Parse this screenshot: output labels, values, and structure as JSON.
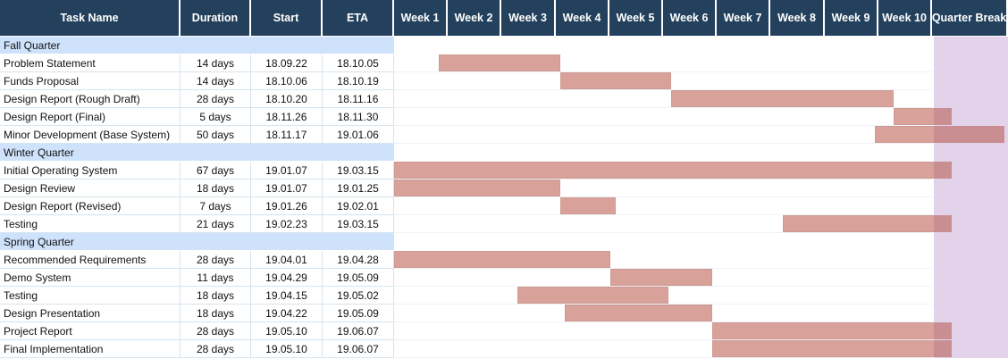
{
  "columns": {
    "task": "Task Name",
    "duration": "Duration",
    "start": "Start",
    "eta": "ETA",
    "weeks": [
      "Week 1",
      "Week 2",
      "Week 3",
      "Week 4",
      "Week 5",
      "Week 6",
      "Week 7",
      "Week 8",
      "Week 9",
      "Week 10"
    ],
    "break": "Quarter Break"
  },
  "chart_data": {
    "type": "table",
    "time_axis": {
      "unit": "week",
      "min": 0,
      "max": 11
    },
    "rows": [
      {
        "kind": "phase",
        "label": "Fall Quarter"
      },
      {
        "kind": "task",
        "name": "Problem Statement",
        "duration": "14 days",
        "start": "18.09.22",
        "eta": "18.10.05",
        "bar": [
          0.8,
          3.0
        ]
      },
      {
        "kind": "task",
        "name": "Funds Proposal",
        "duration": "14 days",
        "start": "18.10.06",
        "eta": "18.10.19",
        "bar": [
          3.0,
          5.0
        ]
      },
      {
        "kind": "task",
        "name": "Design Report (Rough Draft)",
        "duration": "28 days",
        "start": "18.10.20",
        "eta": "18.11.16",
        "bar": [
          5.0,
          9.0
        ]
      },
      {
        "kind": "task",
        "name": "Design Report (Final)",
        "duration": "5 days",
        "start": "18.11.26",
        "eta": "18.11.30",
        "bar": [
          9.0,
          10.05
        ]
      },
      {
        "kind": "task",
        "name": "Minor Development (Base System)",
        "duration": "50 days",
        "start": "18.11.17",
        "eta": "19.01.06",
        "bar": [
          8.67,
          11.0
        ]
      },
      {
        "kind": "phase",
        "label": "Winter Quarter"
      },
      {
        "kind": "task",
        "name": "Initial Operating System",
        "duration": "67 days",
        "start": "19.01.07",
        "eta": "19.03.15",
        "bar": [
          0.0,
          10.05
        ]
      },
      {
        "kind": "task",
        "name": "Design Review",
        "duration": "18 days",
        "start": "19.01.07",
        "eta": "19.01.25",
        "bar": [
          0.0,
          3.0
        ]
      },
      {
        "kind": "task",
        "name": "Design Report (Revised)",
        "duration": "7 days",
        "start": "19.01.26",
        "eta": "19.02.01",
        "bar": [
          3.0,
          4.0
        ]
      },
      {
        "kind": "task",
        "name": "Testing",
        "duration": "21 days",
        "start": "19.02.23",
        "eta": "19.03.15",
        "bar": [
          7.0,
          10.05
        ]
      },
      {
        "kind": "phase",
        "label": "Spring Quarter"
      },
      {
        "kind": "task",
        "name": "Recommended Requirements",
        "duration": "28 days",
        "start": "19.04.01",
        "eta": "19.04.28",
        "bar": [
          0.0,
          3.9
        ]
      },
      {
        "kind": "task",
        "name": "Demo System",
        "duration": "11 days",
        "start": "19.04.29",
        "eta": "19.05.09",
        "bar": [
          3.9,
          5.73
        ]
      },
      {
        "kind": "task",
        "name": "Testing",
        "duration": "18 days",
        "start": "19.04.15",
        "eta": "19.05.02",
        "bar": [
          2.23,
          4.95
        ]
      },
      {
        "kind": "task",
        "name": "Design Presentation",
        "duration": "18 days",
        "start": "19.04.22",
        "eta": "19.05.09",
        "bar": [
          3.07,
          5.73
        ]
      },
      {
        "kind": "task",
        "name": "Project Report",
        "duration": "28 days",
        "start": "19.05.10",
        "eta": "19.06.07",
        "bar": [
          5.73,
          10.05
        ]
      },
      {
        "kind": "task",
        "name": "Final Implementation",
        "duration": "28 days",
        "start": "19.05.10",
        "eta": "19.06.07",
        "bar": [
          5.73,
          10.05
        ]
      }
    ]
  }
}
